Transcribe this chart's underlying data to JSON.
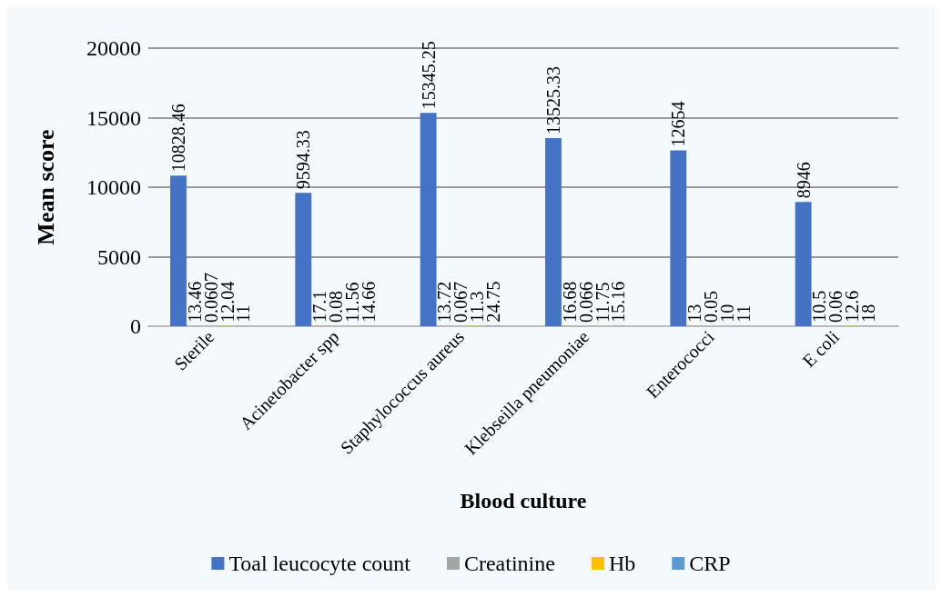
{
  "chart_data": {
    "type": "bar",
    "ylabel": "Mean score",
    "xlabel": "Blood culture",
    "categories": [
      "Sterile",
      "Acinetobacter spp",
      "Staphylococcus aureus",
      "Klebseilla pneumoniae",
      "Enterococci",
      "E coli"
    ],
    "series": [
      {
        "name": "Toal leucocyte count",
        "color": "#4472c4",
        "values": [
          10828.46,
          9594.33,
          15345.25,
          13525.33,
          12654,
          8946
        ]
      },
      {
        "color": "#ed7d31",
        "values": [
          13.46,
          17.1,
          13.72,
          16.68,
          13,
          10.5
        ]
      },
      {
        "name": "Creatinine",
        "color": "#a5a5a5",
        "values": [
          0.0607,
          0.08,
          0.067,
          0.066,
          0.05,
          0.06
        ]
      },
      {
        "name": "Hb",
        "color": "#ffc000",
        "values": [
          12.04,
          11.56,
          11.3,
          11.75,
          10,
          12.6
        ]
      },
      {
        "name": "CRP",
        "color": "#5b9bd5",
        "values": [
          11,
          14.66,
          24.75,
          15.16,
          11,
          18
        ]
      }
    ],
    "ylim": [
      0,
      20000
    ],
    "yticks": [
      0,
      5000,
      10000,
      15000,
      20000
    ],
    "grid": "y",
    "legend": "bottom",
    "data_labels": true
  }
}
